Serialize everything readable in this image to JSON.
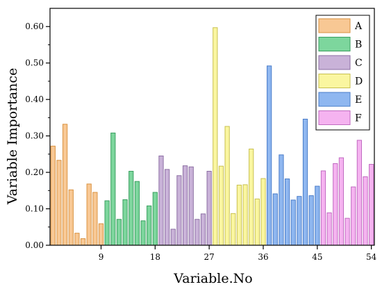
{
  "chart_data": {
    "type": "bar",
    "xlabel": "Variable.No",
    "ylabel": "Variable Importance",
    "ylim": [
      0,
      0.65
    ],
    "xlim": [
      0.5,
      54.5
    ],
    "x_ticks": [
      9,
      18,
      27,
      36,
      45,
      54
    ],
    "y_ticks": [
      0.0,
      0.1,
      0.2,
      0.3,
      0.4,
      0.5,
      0.6
    ],
    "y_tick_labels": [
      "0.00",
      "0.10",
      "0.20",
      "0.30",
      "0.40",
      "0.50",
      "0.60"
    ],
    "legend_position": "top-right",
    "grid": false,
    "series": [
      {
        "name": "A",
        "color": "#F8C894",
        "stroke": "#D99240",
        "x": [
          1,
          2,
          3,
          4,
          5,
          6,
          7,
          8,
          9
        ],
        "values": [
          0.272,
          0.233,
          0.332,
          0.152,
          0.033,
          0.018,
          0.168,
          0.145,
          0.059
        ]
      },
      {
        "name": "B",
        "color": "#7DD69D",
        "stroke": "#3A9E5F",
        "x": [
          10,
          11,
          12,
          13,
          14,
          15,
          16,
          17,
          18
        ],
        "values": [
          0.122,
          0.308,
          0.071,
          0.125,
          0.203,
          0.175,
          0.067,
          0.108,
          0.145
        ]
      },
      {
        "name": "C",
        "color": "#C9B2D8",
        "stroke": "#8C6FA3",
        "x": [
          19,
          20,
          21,
          22,
          23,
          24,
          25,
          26,
          27
        ],
        "values": [
          0.245,
          0.208,
          0.044,
          0.191,
          0.218,
          0.215,
          0.071,
          0.086,
          0.203
        ]
      },
      {
        "name": "D",
        "color": "#FAF6A0",
        "stroke": "#C8C050",
        "x": [
          28,
          29,
          30,
          31,
          32,
          33,
          34,
          35,
          36
        ],
        "values": [
          0.597,
          0.217,
          0.326,
          0.087,
          0.165,
          0.166,
          0.264,
          0.127,
          0.183
        ]
      },
      {
        "name": "E",
        "color": "#8FB7F0",
        "stroke": "#4A7CC8",
        "x": [
          37,
          38,
          39,
          40,
          41,
          42,
          43,
          44,
          45
        ],
        "values": [
          0.492,
          0.141,
          0.248,
          0.182,
          0.124,
          0.134,
          0.346,
          0.136,
          0.162
        ]
      },
      {
        "name": "F",
        "color": "#F5B3F0",
        "stroke": "#C06AC0",
        "x": [
          46,
          47,
          48,
          49,
          50,
          51,
          52,
          53,
          54
        ],
        "values": [
          0.204,
          0.089,
          0.224,
          0.24,
          0.074,
          0.16,
          0.288,
          0.188,
          0.222
        ]
      }
    ]
  }
}
